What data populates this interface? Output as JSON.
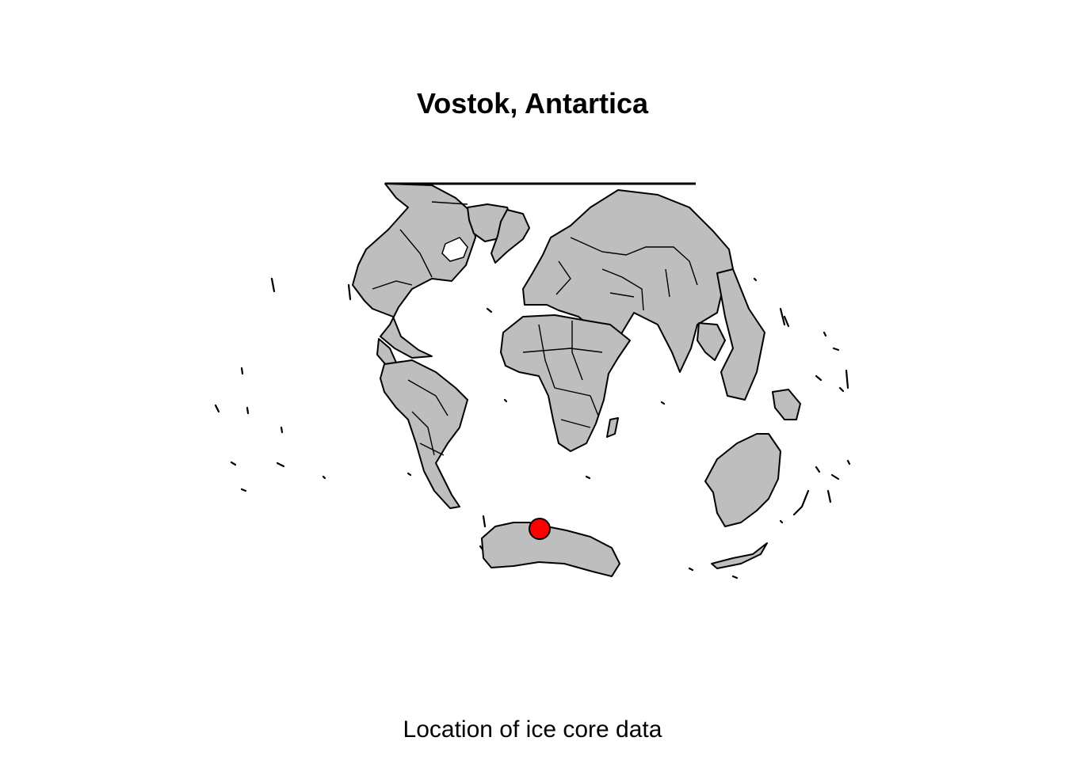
{
  "map": {
    "title": "Vostok, Antartica",
    "caption": "Location of ice core data",
    "land_color": "#bebebe",
    "outline_color": "#000000",
    "marker": {
      "name": "Vostok",
      "color": "#ff0000"
    }
  }
}
